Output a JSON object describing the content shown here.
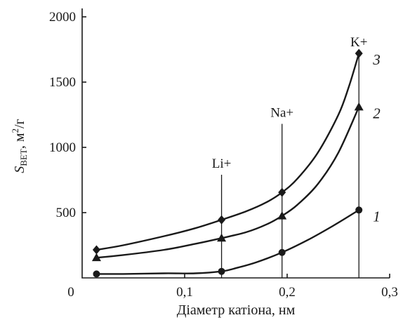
{
  "chart_data": {
    "type": "line",
    "xlabel": "Діаметр катіона, нм",
    "ylabel": {
      "main": "S",
      "subscript": "BET",
      "units": ", м",
      "superscript": "2",
      "suffix": "/г"
    },
    "xlim": [
      0.0,
      0.3
    ],
    "ylim": [
      0,
      2000
    ],
    "x_ticks": [
      {
        "value": 0.0,
        "label": "0"
      },
      {
        "value": 0.1,
        "label": "0,1"
      },
      {
        "value": 0.2,
        "label": "0,2"
      },
      {
        "value": 0.3,
        "label": "0,3"
      }
    ],
    "y_ticks": [
      {
        "value": 500,
        "label": "500"
      },
      {
        "value": 1000,
        "label": "1000"
      },
      {
        "value": 1500,
        "label": "1500"
      },
      {
        "value": 2000,
        "label": "2000"
      }
    ],
    "grid": false,
    "ions": [
      {
        "label": "Li+",
        "x": 0.136,
        "top": 790
      },
      {
        "label": "Na+",
        "x": 0.195,
        "top": 1180
      },
      {
        "label": "K+",
        "x": 0.27,
        "top": 1720
      }
    ],
    "series": [
      {
        "name": "1",
        "marker": "circle",
        "points": [
          [
            0.014,
            30
          ],
          [
            0.136,
            50
          ],
          [
            0.195,
            195
          ],
          [
            0.27,
            520
          ]
        ],
        "curve": [
          [
            0.014,
            30
          ],
          [
            0.04,
            30
          ],
          [
            0.08,
            35
          ],
          [
            0.11,
            35
          ],
          [
            0.136,
            50
          ],
          [
            0.15,
            75
          ],
          [
            0.17,
            120
          ],
          [
            0.195,
            195
          ],
          [
            0.22,
            290
          ],
          [
            0.245,
            400
          ],
          [
            0.27,
            520
          ]
        ]
      },
      {
        "name": "2",
        "marker": "triangle",
        "points": [
          [
            0.014,
            155
          ],
          [
            0.136,
            305
          ],
          [
            0.195,
            475
          ],
          [
            0.27,
            1310
          ]
        ],
        "curve": [
          [
            0.014,
            155
          ],
          [
            0.04,
            175
          ],
          [
            0.08,
            215
          ],
          [
            0.11,
            260
          ],
          [
            0.136,
            305
          ],
          [
            0.16,
            350
          ],
          [
            0.18,
            410
          ],
          [
            0.195,
            475
          ],
          [
            0.21,
            560
          ],
          [
            0.23,
            720
          ],
          [
            0.25,
            960
          ],
          [
            0.27,
            1310
          ]
        ]
      },
      {
        "name": "3",
        "marker": "diamond",
        "points": [
          [
            0.014,
            215
          ],
          [
            0.136,
            445
          ],
          [
            0.195,
            655
          ],
          [
            0.27,
            1720
          ]
        ],
        "curve": [
          [
            0.014,
            215
          ],
          [
            0.04,
            250
          ],
          [
            0.08,
            320
          ],
          [
            0.11,
            380
          ],
          [
            0.136,
            445
          ],
          [
            0.16,
            510
          ],
          [
            0.18,
            580
          ],
          [
            0.195,
            655
          ],
          [
            0.21,
            760
          ],
          [
            0.23,
            960
          ],
          [
            0.25,
            1250
          ],
          [
            0.26,
            1460
          ],
          [
            0.27,
            1720
          ]
        ]
      }
    ]
  }
}
